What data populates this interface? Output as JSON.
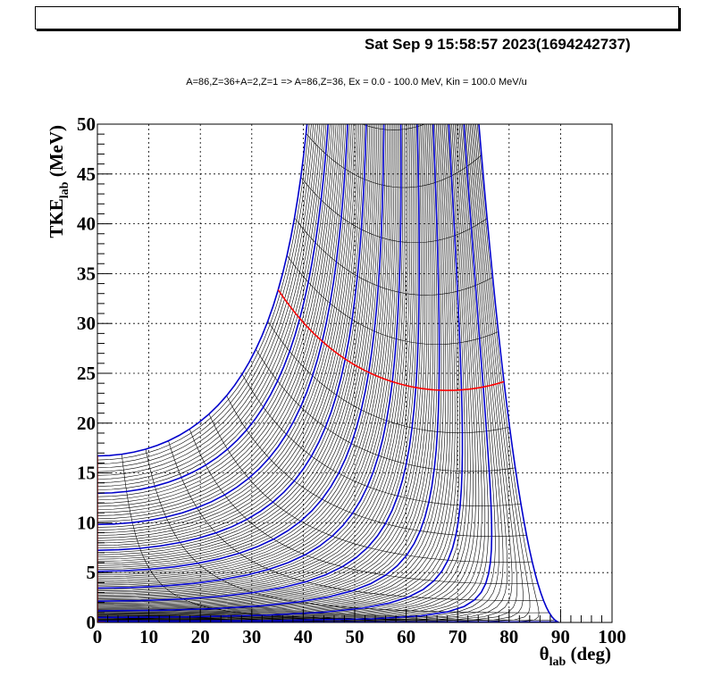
{
  "canvas": {
    "title_box": "",
    "datestamp": "Sat Sep  9 15:58:57 2023(1694242737)",
    "subtitle": "A=86,Z=36+A=2,Z=1 => A=86,Z=36, Ex =  0.0 - 100.0 MeV, Kin =  100.0 MeV/u"
  },
  "chart_data": {
    "type": "line",
    "title": "A=86,Z=36+A=2,Z=1 => A=86,Z=36, Ex =  0.0 - 100.0 MeV, Kin =  100.0 MeV/u",
    "xlabel": "θ",
    "xlabel_sub": "lab",
    "xlabel_unit": " (deg)",
    "ylabel": "TKE",
    "ylabel_sub": "lab",
    "ylabel_unit": " (MeV)",
    "xlim": [
      0,
      100
    ],
    "ylim": [
      0,
      50
    ],
    "x_ticks": [
      0,
      10,
      20,
      30,
      40,
      50,
      60,
      70,
      80,
      90,
      100
    ],
    "y_ticks": [
      0,
      5,
      10,
      15,
      20,
      25,
      30,
      35,
      40,
      45,
      50
    ],
    "grid": true,
    "kinematics": {
      "projectile_A": 86,
      "target_A": 2,
      "ejectile_A": 86,
      "beam_energy_per_u_MeV": 100.0,
      "Ex_min_MeV": 0.0,
      "Ex_max_MeV": 100.0,
      "max_theta_deg": 90
    },
    "colors": {
      "ex_lines": "#ff0000",
      "cm_lines": "#0000cc",
      "dense_lines": "#000000"
    },
    "annotated_points": [
      {
        "name": "Ex=0 curve at theta=0",
        "x": 0,
        "y": 16.5
      },
      {
        "name": "upper boundary cusp",
        "x": 39.5,
        "y": 42.7
      },
      {
        "name": "upper boundary minimum",
        "x": 63,
        "y": 35.8
      },
      {
        "name": "upper boundary end",
        "x": 76.5,
        "y": 37.9
      },
      {
        "name": "lower boundary end",
        "x": 89.5,
        "y": 0
      }
    ]
  }
}
